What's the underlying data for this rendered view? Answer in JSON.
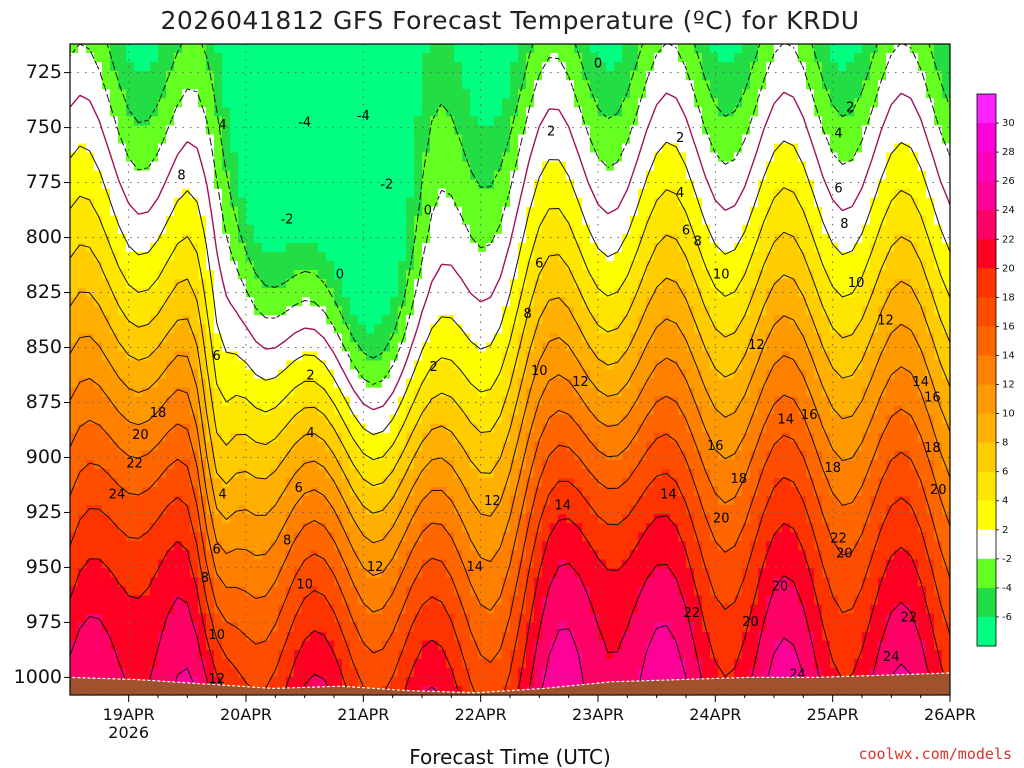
{
  "chart_data": {
    "type": "heatmap",
    "title": "2026041812 GFS Forecast Temperature (ºC) for KRDU",
    "xlabel": "Forecast Time (UTC)",
    "ylabel": "",
    "credit": "coolwx.com/models",
    "x_ticks": [
      {
        "label": "19APR",
        "sublabel": "2026",
        "day": 0
      },
      {
        "label": "20APR",
        "day": 1
      },
      {
        "label": "21APR",
        "day": 2
      },
      {
        "label": "22APR",
        "day": 3
      },
      {
        "label": "23APR",
        "day": 4
      },
      {
        "label": "24APR",
        "day": 5
      },
      {
        "label": "25APR",
        "day": 6
      },
      {
        "label": "26APR",
        "day": 7
      }
    ],
    "xlim_days": [
      -0.5,
      7.0
    ],
    "y_ticks": [
      725,
      750,
      775,
      800,
      825,
      850,
      875,
      900,
      925,
      950,
      975,
      1000
    ],
    "ylim": [
      712,
      1008
    ],
    "colorbar": {
      "labels": [
        "-6",
        "-4",
        "-2",
        "2",
        "4",
        "6",
        "8",
        "10",
        "12",
        "14",
        "16",
        "18",
        "20",
        "22",
        "24",
        "26",
        "28",
        "30"
      ],
      "band_colors": [
        "#00ff80",
        "#22dd44",
        "#66ff22",
        "#ffffff",
        "#ffff00",
        "#ffe600",
        "#ffcc00",
        "#ffb000",
        "#ff9900",
        "#ff8000",
        "#ff6600",
        "#ff4d00",
        "#ff3300",
        "#ff0022",
        "#ff0066",
        "#ff0099",
        "#ff00bb",
        "#ff00dd",
        "#ff22ff"
      ]
    },
    "surface_color": "#a0522d",
    "ground_pressure": [
      1000,
      1001,
      1003,
      1005,
      1004,
      1006,
      1007,
      1005,
      1002,
      1001,
      1000,
      1000,
      999,
      998
    ],
    "contour_labels": [
      {
        "text": "0",
        "day": 4.0,
        "p": 721
      },
      {
        "text": "0",
        "day": 2.55,
        "p": 788
      },
      {
        "text": "0",
        "day": 1.8,
        "p": 817
      },
      {
        "text": "-4",
        "day": 1.5,
        "p": 748
      },
      {
        "text": "-4",
        "day": 2.0,
        "p": 745
      },
      {
        "text": "-2",
        "day": 2.2,
        "p": 776
      },
      {
        "text": "-2",
        "day": 1.35,
        "p": 792
      },
      {
        "text": "2",
        "day": 3.6,
        "p": 752
      },
      {
        "text": "2",
        "day": 4.7,
        "p": 755
      },
      {
        "text": "2",
        "day": 6.15,
        "p": 741
      },
      {
        "text": "2",
        "day": 1.55,
        "p": 863
      },
      {
        "text": "2",
        "day": 2.6,
        "p": 859
      },
      {
        "text": "4",
        "day": 0.8,
        "p": 749
      },
      {
        "text": "4",
        "day": 4.7,
        "p": 780
      },
      {
        "text": "4",
        "day": 6.05,
        "p": 753
      },
      {
        "text": "4",
        "day": 1.55,
        "p": 889
      },
      {
        "text": "4",
        "day": 0.8,
        "p": 917
      },
      {
        "text": "6",
        "day": 6.05,
        "p": 778
      },
      {
        "text": "6",
        "day": 4.75,
        "p": 797
      },
      {
        "text": "6",
        "day": 3.5,
        "p": 812
      },
      {
        "text": "6",
        "day": 1.45,
        "p": 914
      },
      {
        "text": "6",
        "day": 0.75,
        "p": 854
      },
      {
        "text": "6",
        "day": 0.75,
        "p": 942
      },
      {
        "text": "8",
        "day": 0.45,
        "p": 772
      },
      {
        "text": "8",
        "day": 6.1,
        "p": 794
      },
      {
        "text": "8",
        "day": 4.85,
        "p": 802
      },
      {
        "text": "8",
        "day": 3.4,
        "p": 835
      },
      {
        "text": "8",
        "day": 1.35,
        "p": 938
      },
      {
        "text": "8",
        "day": 0.65,
        "p": 955
      },
      {
        "text": "10",
        "day": 5.05,
        "p": 817
      },
      {
        "text": "10",
        "day": 6.2,
        "p": 821
      },
      {
        "text": "10",
        "day": 3.5,
        "p": 861
      },
      {
        "text": "10",
        "day": 1.5,
        "p": 958
      },
      {
        "text": "10",
        "day": 0.75,
        "p": 981
      },
      {
        "text": "12",
        "day": 5.35,
        "p": 849
      },
      {
        "text": "12",
        "day": 6.45,
        "p": 838
      },
      {
        "text": "12",
        "day": 3.85,
        "p": 866
      },
      {
        "text": "12",
        "day": 3.1,
        "p": 920
      },
      {
        "text": "12",
        "day": 2.1,
        "p": 950
      },
      {
        "text": "12",
        "day": 0.75,
        "p": 1001
      },
      {
        "text": "14",
        "day": 6.75,
        "p": 866
      },
      {
        "text": "14",
        "day": 5.6,
        "p": 883
      },
      {
        "text": "14",
        "day": 3.7,
        "p": 922
      },
      {
        "text": "14",
        "day": 4.6,
        "p": 917
      },
      {
        "text": "14",
        "day": 2.95,
        "p": 950
      },
      {
        "text": "16",
        "day": 5.8,
        "p": 881
      },
      {
        "text": "16",
        "day": 6.85,
        "p": 873
      },
      {
        "text": "16",
        "day": 5.0,
        "p": 895
      },
      {
        "text": "18",
        "day": 0.25,
        "p": 880
      },
      {
        "text": "18",
        "day": 6.85,
        "p": 896
      },
      {
        "text": "18",
        "day": 6.0,
        "p": 905
      },
      {
        "text": "18",
        "day": 5.2,
        "p": 910
      },
      {
        "text": "20",
        "day": 0.1,
        "p": 890
      },
      {
        "text": "20",
        "day": 6.9,
        "p": 915
      },
      {
        "text": "20",
        "day": 5.05,
        "p": 928
      },
      {
        "text": "20",
        "day": 6.1,
        "p": 944
      },
      {
        "text": "20",
        "day": 5.55,
        "p": 959
      },
      {
        "text": "20",
        "day": 5.3,
        "p": 975
      },
      {
        "text": "22",
        "day": 0.05,
        "p": 903
      },
      {
        "text": "22",
        "day": 6.05,
        "p": 937
      },
      {
        "text": "22",
        "day": 4.8,
        "p": 971
      },
      {
        "text": "22",
        "day": 6.65,
        "p": 973
      },
      {
        "text": "24",
        "day": -0.1,
        "p": 917
      },
      {
        "text": "24",
        "day": 6.5,
        "p": 991
      },
      {
        "text": "24",
        "day": 5.7,
        "p": 999
      }
    ]
  }
}
